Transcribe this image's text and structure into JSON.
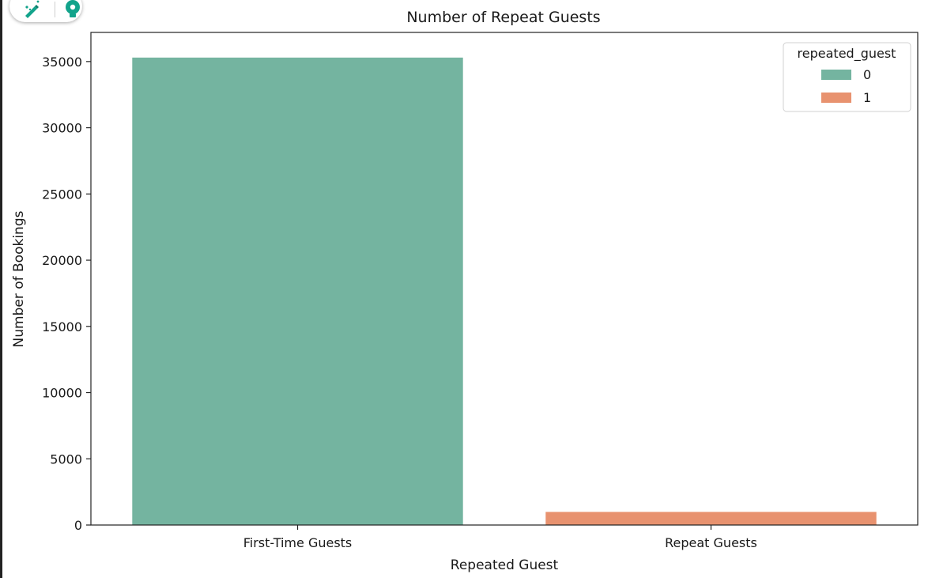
{
  "toolbar": {
    "icons": [
      "edit-magic-icon",
      "lightbulb-icon"
    ],
    "accent": "#12a38b"
  },
  "chart_data": {
    "type": "bar",
    "title": "Number of Repeat Guests",
    "xlabel": "Repeated Guest",
    "ylabel": "Number of Bookings",
    "categories": [
      "First-Time Guests",
      "Repeat Guests"
    ],
    "series": [
      {
        "name": "0",
        "color": "#74b4a0",
        "values": [
          35300,
          null
        ]
      },
      {
        "name": "1",
        "color": "#e8926f",
        "values": [
          null,
          990
        ]
      }
    ],
    "ylim": [
      0,
      37200
    ],
    "yticks": [
      0,
      5000,
      10000,
      15000,
      20000,
      25000,
      30000,
      35000
    ],
    "legend": {
      "title": "repeated_guest",
      "placement": "top-right"
    },
    "grid": false
  }
}
